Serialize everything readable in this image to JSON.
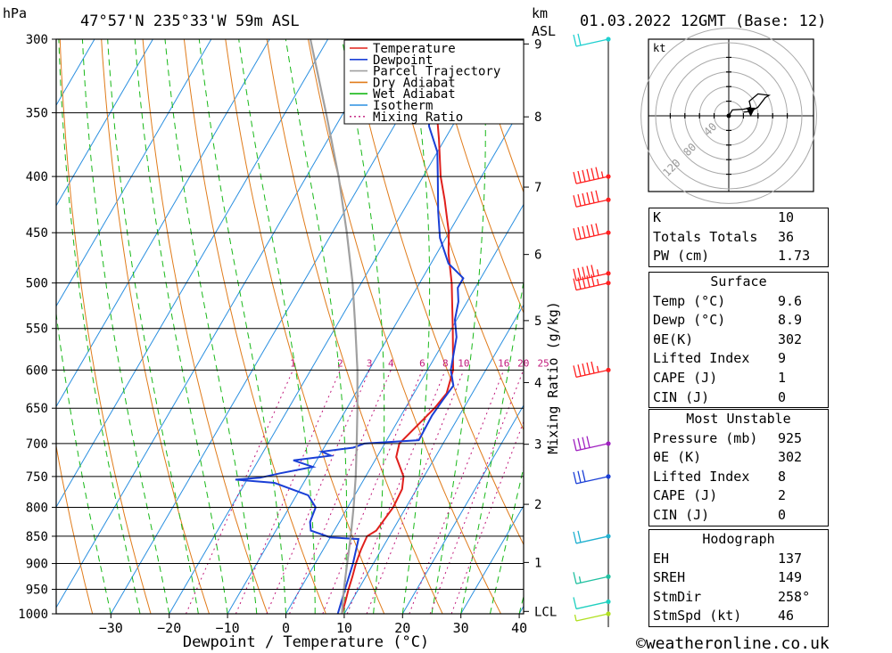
{
  "header": {
    "pressure_unit": "hPa",
    "location": "47°57'N  235°33'W  59m  ASL",
    "height_unit": "km",
    "height_unit_sub": "ASL",
    "datetime": "01.03.2022  12GMT  (Base: 12)"
  },
  "footer": {
    "xlabel": "Dewpoint / Temperature (°C)",
    "credit": "©weatheronline.co.uk"
  },
  "chart_data": {
    "type": "line",
    "subtype": "skew-t log-p",
    "xlabel": "Dewpoint / Temperature (°C)",
    "ylabel_left": "hPa",
    "ylabel_right": "Mixing Ratio (g/kg)",
    "x_ticks": [
      -30,
      -20,
      -10,
      0,
      10,
      20,
      30,
      40
    ],
    "pressure_levels": [
      300,
      350,
      400,
      450,
      500,
      550,
      600,
      650,
      700,
      750,
      800,
      850,
      900,
      950,
      1000
    ],
    "height_ticks_km": [
      {
        "label": "9",
        "p": 303
      },
      {
        "label": "8",
        "p": 353
      },
      {
        "label": "7",
        "p": 409
      },
      {
        "label": "6",
        "p": 471
      },
      {
        "label": "5",
        "p": 541
      },
      {
        "label": "4",
        "p": 616
      },
      {
        "label": "3",
        "p": 701
      },
      {
        "label": "2",
        "p": 795
      },
      {
        "label": "1",
        "p": 898
      },
      {
        "label": "LCL",
        "p": 995
      }
    ],
    "mixing_ratio_labels": [
      "1",
      "2",
      "3",
      "4",
      "6",
      "8",
      "10",
      "16",
      "20",
      "25"
    ],
    "mixing_ratio_values": [
      1,
      2,
      3,
      4,
      6,
      8,
      10,
      16,
      20,
      25
    ],
    "legend": {
      "placement": "top-right",
      "items": [
        {
          "label": "Temperature",
          "color": "#e0201c",
          "style": "solid"
        },
        {
          "label": "Dewpoint",
          "color": "#1a3fd6",
          "style": "solid"
        },
        {
          "label": "Parcel Trajectory",
          "color": "#a0a0a0",
          "style": "solid"
        },
        {
          "label": "Dry Adiabat",
          "color": "#e07b1a",
          "style": "solid"
        },
        {
          "label": "Wet Adiabat",
          "color": "#18b818",
          "style": "solid"
        },
        {
          "label": "Isotherm",
          "color": "#2a8fe0",
          "style": "solid"
        },
        {
          "label": "Mixing Ratio",
          "color": "#c0187a",
          "style": "dotted"
        }
      ]
    },
    "series": [
      {
        "name": "Temperature",
        "color": "#e0201c",
        "points": [
          [
            1000,
            9.6
          ],
          [
            975,
            9
          ],
          [
            950,
            8.3
          ],
          [
            925,
            7.7
          ],
          [
            900,
            7
          ],
          [
            875,
            6.5
          ],
          [
            850,
            6.2
          ],
          [
            840,
            7.2
          ],
          [
            800,
            7.8
          ],
          [
            770,
            7.5
          ],
          [
            750,
            6.5
          ],
          [
            720,
            3.3
          ],
          [
            700,
            2.5
          ],
          [
            650,
            5
          ],
          [
            630,
            5.6
          ],
          [
            600,
            4.4
          ],
          [
            550,
            0.2
          ],
          [
            500,
            -4.5
          ],
          [
            470,
            -8
          ],
          [
            450,
            -10
          ],
          [
            420,
            -14
          ],
          [
            400,
            -17
          ],
          [
            370,
            -21
          ],
          [
            350,
            -24
          ],
          [
            330,
            -28
          ],
          [
            310,
            -32
          ],
          [
            300,
            -34.7
          ]
        ]
      },
      {
        "name": "Dewpoint",
        "color": "#1a3fd6",
        "points": [
          [
            1000,
            8.9
          ],
          [
            950,
            7.7
          ],
          [
            900,
            6.5
          ],
          [
            855,
            5
          ],
          [
            852,
            0
          ],
          [
            840,
            -4
          ],
          [
            825,
            -5
          ],
          [
            800,
            -5.5
          ],
          [
            780,
            -8
          ],
          [
            760,
            -15
          ],
          [
            755,
            -22
          ],
          [
            752,
            -18
          ],
          [
            745,
            -15
          ],
          [
            735,
            -10
          ],
          [
            725,
            -14
          ],
          [
            718,
            -8
          ],
          [
            712,
            -10
          ],
          [
            706,
            -5
          ],
          [
            700,
            -3.5
          ],
          [
            695,
            5.5
          ],
          [
            660,
            5.3
          ],
          [
            640,
            5.6
          ],
          [
            620,
            6
          ],
          [
            600,
            4
          ],
          [
            560,
            1.7
          ],
          [
            540,
            -0.3
          ],
          [
            520,
            -1.5
          ],
          [
            505,
            -3
          ],
          [
            495,
            -3
          ],
          [
            480,
            -7
          ],
          [
            455,
            -11
          ],
          [
            430,
            -14
          ],
          [
            400,
            -17.5
          ],
          [
            380,
            -20
          ],
          [
            360,
            -24
          ],
          [
            345,
            -26
          ],
          [
            340,
            -28
          ],
          [
            330,
            -28.5
          ],
          [
            320,
            -29.5
          ],
          [
            312,
            -30.5
          ],
          [
            300,
            -30
          ]
        ]
      },
      {
        "name": "Parcel Trajectory",
        "color": "#a0a0a0",
        "points": [
          [
            1000,
            9.6
          ],
          [
            950,
            7.5
          ],
          [
            900,
            5.5
          ],
          [
            850,
            3.4
          ],
          [
            800,
            1
          ],
          [
            750,
            -1.7
          ],
          [
            700,
            -4.8
          ],
          [
            650,
            -8.2
          ],
          [
            600,
            -12
          ],
          [
            550,
            -16.5
          ],
          [
            500,
            -21.5
          ],
          [
            450,
            -27.5
          ],
          [
            400,
            -34.5
          ],
          [
            350,
            -43
          ],
          [
            300,
            -53
          ]
        ]
      }
    ]
  },
  "wind_barbs": [
    {
      "p": 300,
      "speed": 20,
      "color": "#20d0d0"
    },
    {
      "p": 400,
      "speed": 65,
      "color": "#ff2020"
    },
    {
      "p": 420,
      "speed": 60,
      "color": "#ff2020"
    },
    {
      "p": 450,
      "speed": 60,
      "color": "#ff2020"
    },
    {
      "p": 490,
      "speed": 55,
      "color": "#ff2020"
    },
    {
      "p": 500,
      "speed": 55,
      "color": "#ff2020"
    },
    {
      "p": 600,
      "speed": 55,
      "color": "#ff2020"
    },
    {
      "p": 700,
      "speed": 40,
      "color": "#a020c0"
    },
    {
      "p": 750,
      "speed": 30,
      "color": "#1a3fd6"
    },
    {
      "p": 850,
      "speed": 20,
      "color": "#20b0d0"
    },
    {
      "p": 925,
      "speed": 15,
      "color": "#20c0a0"
    },
    {
      "p": 975,
      "speed": 10,
      "color": "#20d0c0"
    },
    {
      "p": 1000,
      "speed": 5,
      "color": "#b0e020"
    }
  ],
  "hodograph": {
    "unit": "kt",
    "ring_labels": [
      "40",
      "80",
      "120"
    ],
    "trace": [
      [
        0,
        0
      ],
      [
        5,
        8
      ],
      [
        20,
        9
      ],
      [
        25,
        10
      ],
      [
        30,
        12
      ],
      [
        28,
        20
      ],
      [
        40,
        30
      ],
      [
        55,
        28
      ],
      [
        50,
        25
      ],
      [
        40,
        12
      ],
      [
        30,
        6
      ],
      [
        20,
        5
      ]
    ],
    "storm_motion": [
      30,
      5
    ]
  },
  "indices": {
    "general": [
      {
        "label": "K",
        "value": "10"
      },
      {
        "label": "Totals Totals",
        "value": "36"
      },
      {
        "label": "PW (cm)",
        "value": "1.73"
      }
    ],
    "surface": {
      "title": "Surface",
      "rows": [
        {
          "label": "Temp (°C)",
          "value": "9.6"
        },
        {
          "label": "Dewp (°C)",
          "value": "8.9"
        },
        {
          "label": "θE(K)",
          "value": "302"
        },
        {
          "label": "Lifted Index",
          "value": "9"
        },
        {
          "label": "CAPE (J)",
          "value": "1"
        },
        {
          "label": "CIN (J)",
          "value": "0"
        }
      ]
    },
    "most_unstable": {
      "title": "Most Unstable",
      "rows": [
        {
          "label": "Pressure (mb)",
          "value": "925"
        },
        {
          "label": "θE (K)",
          "value": "302"
        },
        {
          "label": "Lifted Index",
          "value": "8"
        },
        {
          "label": "CAPE (J)",
          "value": "2"
        },
        {
          "label": "CIN (J)",
          "value": "0"
        }
      ]
    },
    "hodograph_box": {
      "title": "Hodograph",
      "rows": [
        {
          "label": "EH",
          "value": "137"
        },
        {
          "label": "SREH",
          "value": "149"
        },
        {
          "label": "StmDir",
          "value": "258°"
        },
        {
          "label": "StmSpd (kt)",
          "value": "46"
        }
      ]
    }
  }
}
